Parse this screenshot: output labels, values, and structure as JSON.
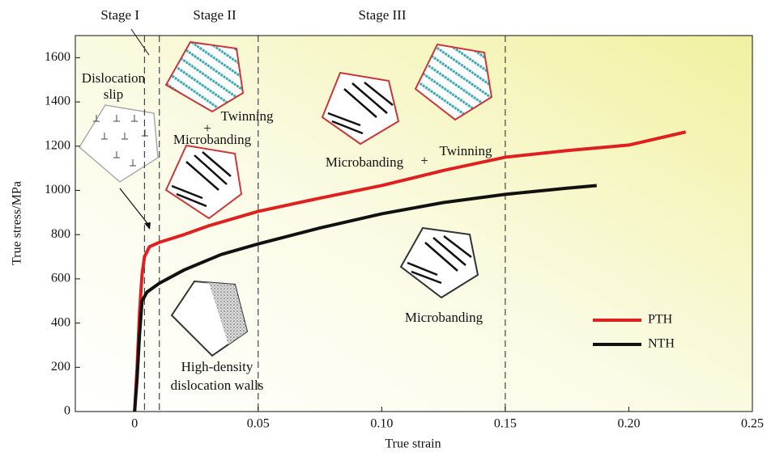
{
  "chart_data": {
    "type": "line",
    "xlabel": "True strain",
    "ylabel": "True stress/MPa",
    "xlim": [
      -0.024,
      0.25
    ],
    "ylim": [
      0,
      1700
    ],
    "xticks": [
      0,
      0.05,
      {
        "value": 0.1,
        "label": "0.10"
      },
      0.15,
      {
        "value": 0.2,
        "label": "0.20"
      },
      0.25
    ],
    "yticks": [
      0,
      200,
      400,
      600,
      800,
      1000,
      1200,
      1400,
      1600
    ],
    "stage_lines": [
      0.004,
      0.01,
      0.05,
      0.15
    ],
    "legend": "lower right",
    "series": [
      {
        "name": "PTH",
        "color": "#e02020",
        "x": [
          0,
          0.001,
          0.002,
          0.003,
          0.004,
          0.006,
          0.01,
          0.02,
          0.03,
          0.05,
          0.075,
          0.1,
          0.125,
          0.15,
          0.175,
          0.2,
          0.223
        ],
        "values": [
          0,
          200,
          450,
          620,
          700,
          745,
          765,
          800,
          840,
          905,
          965,
          1022,
          1090,
          1150,
          1180,
          1205,
          1264
        ]
      },
      {
        "name": "NTH",
        "color": "#111111",
        "x": [
          0,
          0.001,
          0.002,
          0.003,
          0.005,
          0.01,
          0.02,
          0.035,
          0.05,
          0.075,
          0.1,
          0.125,
          0.15,
          0.175,
          0.187
        ],
        "values": [
          0,
          150,
          350,
          500,
          540,
          580,
          640,
          710,
          758,
          830,
          894,
          945,
          982,
          1010,
          1022
        ]
      }
    ],
    "annotations": [
      "Stage I",
      "Stage II",
      "Stage III",
      "Dislocation",
      "slip",
      "Twinning",
      "+",
      "Microbanding",
      "Microbanding",
      "+",
      "Twinning",
      "High-density",
      "dislocation walls",
      "Microbanding"
    ]
  }
}
